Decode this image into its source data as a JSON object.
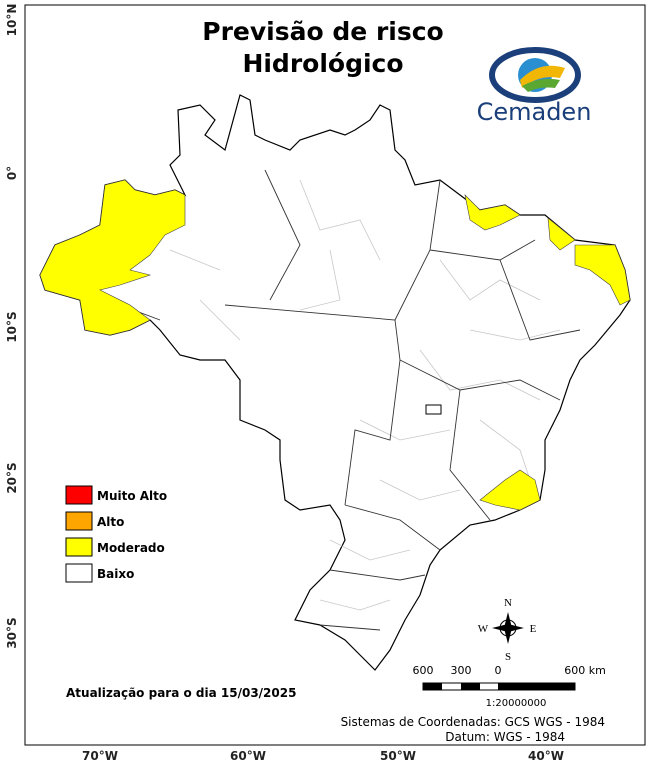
{
  "header": {
    "title": [
      "Previsão de risco",
      "Hidrológico"
    ],
    "logo": "Cemaden"
  },
  "legend": [
    {
      "label": "Muito Alto",
      "color": "#ff0000"
    },
    {
      "label": "Alto",
      "color": "#ffa500"
    },
    {
      "label": "Moderado",
      "color": "#ffff00"
    },
    {
      "label": "Baixo",
      "color": "#ffffff"
    }
  ],
  "graticule": {
    "lat": [
      "10°N",
      "0°",
      "10°S",
      "20°S",
      "30°S"
    ],
    "lon": [
      "70°W",
      "60°W",
      "50°W",
      "40°W"
    ]
  },
  "update": "Atualização para o dia 15/03/2025",
  "scale": {
    "labels": [
      "600",
      "300",
      "0",
      "600 km"
    ],
    "ratio": "1:20000000"
  },
  "compass": {
    "n": "N",
    "s": "S",
    "e": "E",
    "w": "W"
  },
  "footer": [
    "Sistemas de Coordenadas: GCS WGS - 1984",
    "Datum: WGS - 1984"
  ]
}
